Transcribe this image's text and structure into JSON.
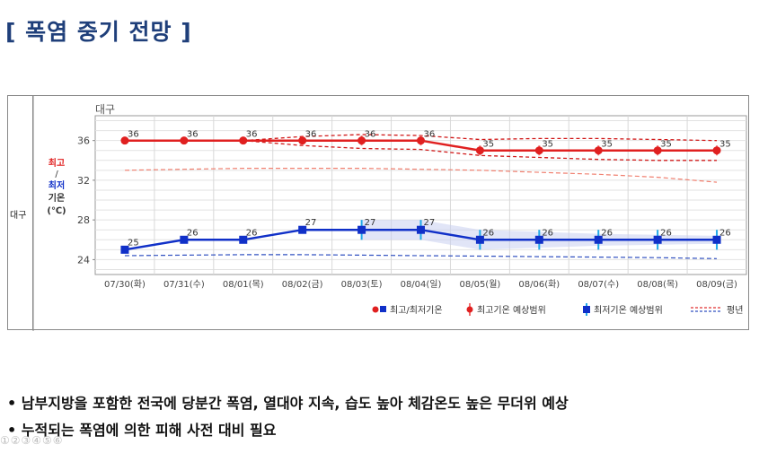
{
  "page": {
    "title": "[ 폭염 중기 전망 ]",
    "bullets": [
      "• 남부지방을 포함한 전국에 당분간 폭염, 열대야 지속, 습도 높아 체감온도 높은 무더위 예상",
      "• 누적되는 폭염에 의한 피해 사전 대비 필요"
    ],
    "page_dots": "①②③④⑤⑥"
  },
  "chart_data": {
    "type": "line",
    "region_label": "대구",
    "panel_title": "대구",
    "ylabel": {
      "max_label": "최고",
      "slash": "/",
      "min_label": "최저",
      "unit1": "기온",
      "unit2": "(℃)"
    },
    "ylim": [
      22.5,
      38.5
    ],
    "yticks": [
      "36",
      "32",
      "28",
      "24"
    ],
    "yticks_values": [
      36,
      32,
      28,
      24
    ],
    "categories": [
      "07/30(화)",
      "07/31(수)",
      "08/01(목)",
      "08/02(금)",
      "08/03(토)",
      "08/04(일)",
      "08/05(월)",
      "08/06(화)",
      "08/07(수)",
      "08/08(목)",
      "08/09(금)"
    ],
    "series": [
      {
        "name": "최고기온",
        "color": "#e02020",
        "values": [
          36,
          36,
          36,
          36,
          36,
          36,
          35,
          35,
          35,
          35,
          35
        ],
        "labels": [
          "36",
          "36",
          "36",
          "36",
          "36",
          "36",
          "35",
          "35",
          "35",
          "35",
          "35"
        ],
        "range_high": [
          null,
          null,
          36,
          36.4,
          36.6,
          36.5,
          36.1,
          36.2,
          36.2,
          36.1,
          36.0
        ],
        "range_low": [
          null,
          null,
          36,
          35.5,
          35.2,
          35.1,
          34.5,
          34.3,
          34.1,
          34.0,
          34.0
        ],
        "normal": [
          33.0,
          33.1,
          33.2,
          33.2,
          33.2,
          33.1,
          33.0,
          32.8,
          32.6,
          32.3,
          31.8
        ]
      },
      {
        "name": "최저기온",
        "color": "#1030c8",
        "values": [
          25,
          26,
          26,
          27,
          27,
          27,
          26,
          26,
          26,
          26,
          26
        ],
        "labels": [
          "25",
          "26",
          "26",
          "27",
          "27",
          "27",
          "26",
          "26",
          "26",
          "26",
          "26"
        ],
        "range_high": [
          null,
          null,
          null,
          null,
          28.0,
          28.0,
          27.0,
          26.8,
          26.6,
          26.5,
          26.4
        ],
        "range_low": [
          null,
          null,
          null,
          null,
          26.0,
          26.0,
          25.0,
          25.2,
          25.4,
          25.5,
          25.6
        ],
        "normal": [
          24.4,
          24.45,
          24.5,
          24.5,
          24.45,
          24.4,
          24.35,
          24.3,
          24.25,
          24.2,
          24.1
        ]
      }
    ],
    "legend": [
      {
        "key": "actual",
        "label": "최고/최저기온"
      },
      {
        "key": "max_range",
        "label": "최고기온 예상범위"
      },
      {
        "key": "min_range",
        "label": "최저기온 예상범위"
      },
      {
        "key": "normal",
        "label": "평년"
      }
    ]
  }
}
